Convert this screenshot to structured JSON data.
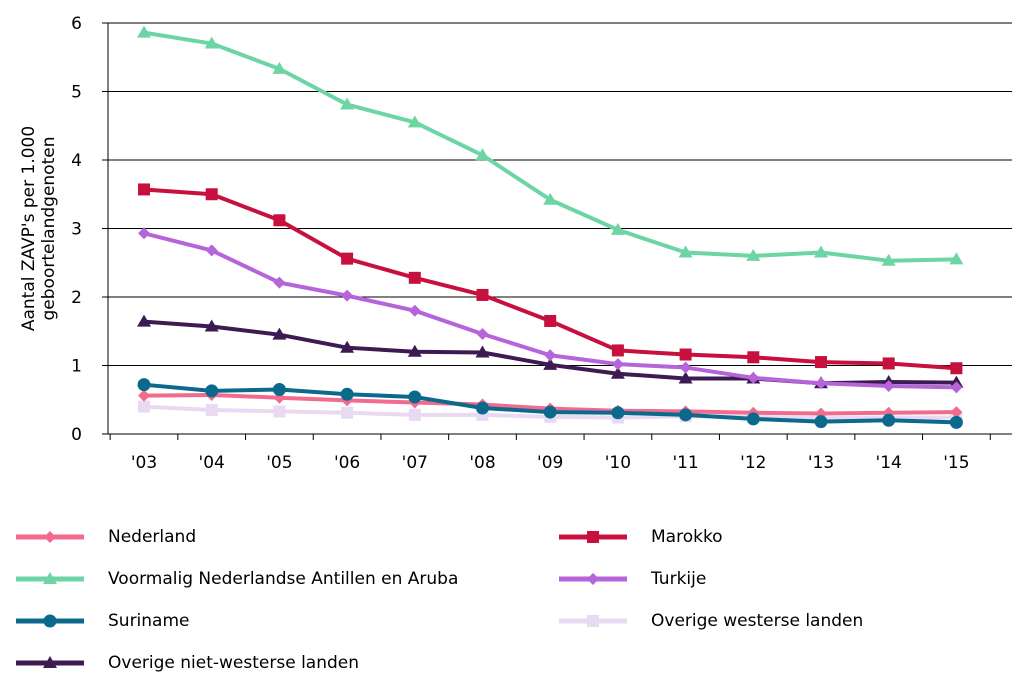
{
  "chart_data": {
    "type": "line",
    "title": "",
    "ylabel_lines": [
      "Aantal ZAVP's per 1.000",
      "geboortelandgenoten"
    ],
    "xlabel": "",
    "categories": [
      "'03",
      "'04",
      "'05",
      "'06",
      "'07",
      "'08",
      "'09",
      "'10",
      "'11",
      "'12",
      "'13",
      "'14",
      "'15"
    ],
    "ylim": [
      0,
      6
    ],
    "yticks": [
      0,
      1,
      2,
      3,
      4,
      5,
      6
    ],
    "grid": "horizontal",
    "legend_position": "bottom",
    "series": [
      {
        "name": "Nederland",
        "color": "#f26b8f",
        "marker": "diamond",
        "values": [
          0.56,
          0.57,
          0.53,
          0.49,
          0.46,
          0.43,
          0.37,
          0.34,
          0.33,
          0.31,
          0.3,
          0.31,
          0.32
        ]
      },
      {
        "name": "Marokko",
        "color": "#c8103e",
        "marker": "square",
        "values": [
          3.57,
          3.5,
          3.12,
          2.56,
          2.28,
          2.03,
          1.65,
          1.22,
          1.16,
          1.12,
          1.05,
          1.03,
          0.96
        ]
      },
      {
        "name": "Voormalig Nederlandse Antillen en Aruba",
        "color": "#6dd5a4",
        "marker": "triangle",
        "values": [
          5.86,
          5.7,
          5.33,
          4.81,
          4.55,
          4.07,
          3.42,
          2.98,
          2.65,
          2.6,
          2.65,
          2.53,
          2.55
        ]
      },
      {
        "name": "Turkije",
        "color": "#b565d9",
        "marker": "diamond",
        "values": [
          2.93,
          2.68,
          2.21,
          2.02,
          1.8,
          1.46,
          1.15,
          1.02,
          0.97,
          0.82,
          0.74,
          0.7,
          0.68
        ]
      },
      {
        "name": "Suriname",
        "color": "#0b6a8c",
        "marker": "circle",
        "values": [
          0.72,
          0.63,
          0.65,
          0.58,
          0.54,
          0.38,
          0.32,
          0.31,
          0.28,
          0.22,
          0.18,
          0.2,
          0.17
        ]
      },
      {
        "name": "Overige westerse landen",
        "color": "#e9d9f2",
        "marker": "square",
        "values": [
          0.4,
          0.35,
          0.33,
          0.31,
          0.28,
          0.28,
          0.25,
          0.24,
          0.26,
          0.25,
          0.23,
          0.24,
          0.24
        ]
      },
      {
        "name": "Overige niet-westerse landen",
        "color": "#3d1a52",
        "marker": "triangle",
        "values": [
          1.64,
          1.57,
          1.45,
          1.26,
          1.2,
          1.19,
          1.01,
          0.88,
          0.81,
          0.81,
          0.74,
          0.76,
          0.75
        ]
      }
    ]
  }
}
